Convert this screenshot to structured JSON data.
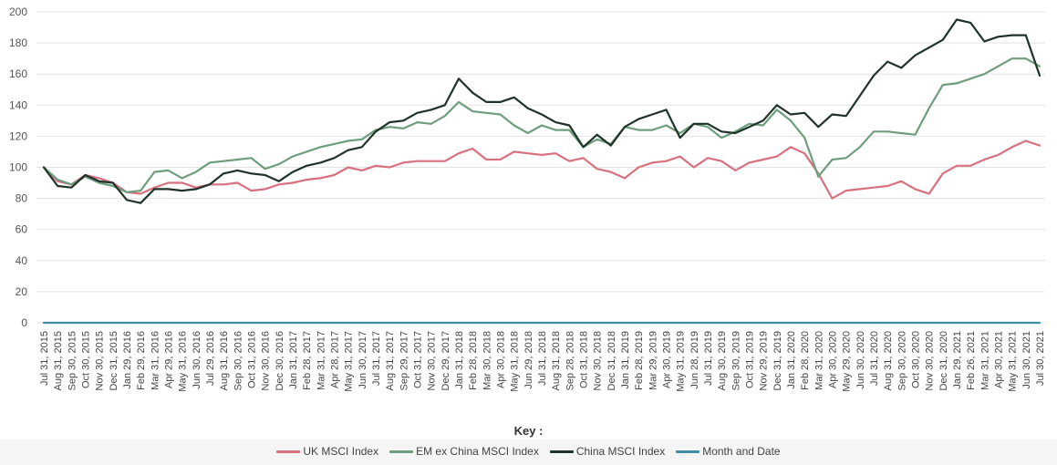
{
  "chart_data": {
    "type": "line",
    "title": "",
    "xlabel": "",
    "ylabel": "",
    "ylim": [
      0,
      200
    ],
    "yticks": [
      0,
      20,
      40,
      60,
      80,
      100,
      120,
      140,
      160,
      180,
      200
    ],
    "grid": true,
    "legend_position": "bottom",
    "legend_title": "Key :",
    "categories": [
      "Jul 31, 2015",
      "Aug 31, 2015",
      "Sep 30, 2015",
      "Oct 30, 2015",
      "Nov 30, 2015",
      "Dec 31, 2015",
      "Jan 29, 2016",
      "Feb 29, 2016",
      "Mar 31, 2016",
      "Apr 29, 2016",
      "May 31, 2016",
      "Jun 30, 2016",
      "Jul 29, 2016",
      "Aug 31, 2016",
      "Sep 30, 2016",
      "Oct 31, 2016",
      "Nov 30, 2016",
      "Dec 30, 2016",
      "Jan 31, 2017",
      "Feb 28, 2017",
      "Mar 31, 2017",
      "Apr 28, 2017",
      "May 31, 2017",
      "Jun 30, 2017",
      "Jul 31, 2017",
      "Aug 31, 2017",
      "Sep 29, 2017",
      "Oct 31, 2017",
      "Nov 30, 2017",
      "Dec 29, 2017",
      "Jan 31, 2018",
      "Feb 28, 2018",
      "Mar 30, 2018",
      "Apr 30, 2018",
      "May 31, 2018",
      "Jun 29, 2018",
      "Jul 31, 2018",
      "Aug 31, 2018",
      "Sep 28, 2018",
      "Oct 31, 2018",
      "Nov 30, 2018",
      "Dec 31, 2018",
      "Jan 31, 2019",
      "Feb 28, 2019",
      "Mar 29, 2019",
      "Apr 30, 2019",
      "May 31, 2019",
      "Jun 28, 2019",
      "Jul 31, 2019",
      "Aug 30, 2019",
      "Sep 30, 2019",
      "Oct 31, 2019",
      "Nov 29, 2019",
      "Dec 31, 2019",
      "Jan 31, 2020",
      "Feb 28, 2020",
      "Mar 31, 2020",
      "Apr 30, 2020",
      "May 29, 2020",
      "Jun 30, 2020",
      "Jul 31, 2020",
      "Aug 31, 2020",
      "Sep 30, 2020",
      "Oct 30, 2020",
      "Nov 30, 2020",
      "Dec 31, 2020",
      "Jan 29, 2021",
      "Feb 26, 2021",
      "Mar 31, 2021",
      "Apr 30, 2021",
      "May 31, 2021",
      "Jun 30, 2021",
      "Jul 30, 2021"
    ],
    "label_every": 1,
    "series": [
      {
        "name": "UK MSCI Index",
        "color": "#d9707f",
        "values": [
          100,
          91,
          89,
          95,
          93,
          90,
          84,
          83,
          87,
          90,
          90,
          87,
          89,
          89,
          90,
          85,
          86,
          89,
          90,
          92,
          93,
          95,
          100,
          98,
          101,
          100,
          103,
          104,
          104,
          104,
          109,
          112,
          105,
          105,
          110,
          109,
          108,
          109,
          104,
          106,
          99,
          97,
          93,
          100,
          103,
          104,
          107,
          100,
          106,
          104,
          98,
          103,
          105,
          107,
          113,
          109,
          96,
          80,
          85,
          86,
          87,
          88,
          91,
          86,
          83,
          96,
          101,
          101,
          105,
          108,
          113,
          117,
          114
        ]
      },
      {
        "name": "EM ex China MSCI Index",
        "color": "#6e9e7e",
        "values": [
          100,
          92,
          89,
          94,
          90,
          88,
          84,
          85,
          97,
          98,
          93,
          97,
          103,
          104,
          105,
          106,
          99,
          102,
          107,
          110,
          113,
          115,
          117,
          118,
          124,
          126,
          125,
          129,
          128,
          133,
          142,
          136,
          135,
          134,
          127,
          122,
          127,
          124,
          124,
          113,
          118,
          115,
          126,
          124,
          124,
          127,
          122,
          128,
          126,
          119,
          123,
          128,
          127,
          137,
          130,
          119,
          94,
          105,
          106,
          113,
          123,
          123,
          122,
          121,
          138,
          153,
          154,
          157,
          160,
          165,
          170,
          170,
          165
        ]
      },
      {
        "name": "China MSCI Index",
        "color": "#1f3328",
        "values": [
          100,
          88,
          87,
          95,
          91,
          90,
          79,
          77,
          86,
          86,
          85,
          86,
          89,
          96,
          98,
          96,
          95,
          91,
          97,
          101,
          103,
          106,
          111,
          113,
          123,
          129,
          130,
          135,
          137,
          140,
          157,
          148,
          142,
          142,
          145,
          138,
          134,
          129,
          127,
          113,
          121,
          114,
          126,
          131,
          134,
          137,
          119,
          128,
          128,
          123,
          122,
          126,
          130,
          140,
          134,
          135,
          126,
          134,
          133,
          146,
          159,
          168,
          164,
          172,
          177,
          182,
          195,
          193,
          181,
          184,
          185,
          185,
          159
        ]
      },
      {
        "name": "Month and Date",
        "color": "#3e8fa6",
        "values": [
          0,
          0,
          0,
          0,
          0,
          0,
          0,
          0,
          0,
          0,
          0,
          0,
          0,
          0,
          0,
          0,
          0,
          0,
          0,
          0,
          0,
          0,
          0,
          0,
          0,
          0,
          0,
          0,
          0,
          0,
          0,
          0,
          0,
          0,
          0,
          0,
          0,
          0,
          0,
          0,
          0,
          0,
          0,
          0,
          0,
          0,
          0,
          0,
          0,
          0,
          0,
          0,
          0,
          0,
          0,
          0,
          0,
          0,
          0,
          0,
          0,
          0,
          0,
          0,
          0,
          0,
          0,
          0,
          0,
          0,
          0,
          0,
          0
        ]
      }
    ]
  }
}
